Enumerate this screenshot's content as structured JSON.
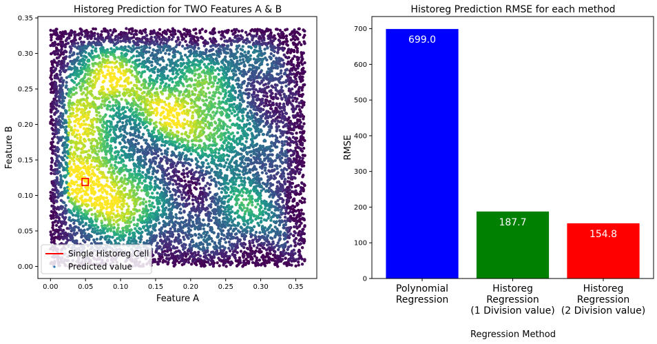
{
  "colors": {
    "viridis": [
      "#440154",
      "#472c7a",
      "#3b528b",
      "#2c728e",
      "#21918c",
      "#28ae80",
      "#5ec962",
      "#addc30",
      "#fde725"
    ],
    "cell_outline": "#ff0000",
    "legend_line": "#ff0000",
    "legend_marker": "#1f77b4"
  },
  "chart_data": [
    {
      "type": "scatter",
      "title": "Historeg Prediction for TWO Features A & B",
      "xlabel": "Feature A",
      "ylabel": "Feature B",
      "xlim": [
        -0.018,
        0.38
      ],
      "ylim": [
        -0.017,
        0.352
      ],
      "xticks": [
        0.0,
        0.05,
        0.1,
        0.15,
        0.2,
        0.25,
        0.3,
        0.35
      ],
      "xtick_labels": [
        "0.00",
        "0.05",
        "0.10",
        "0.15",
        "0.20",
        "0.25",
        "0.30",
        "0.35"
      ],
      "yticks": [
        0.0,
        0.05,
        0.1,
        0.15,
        0.2,
        0.25,
        0.3,
        0.35
      ],
      "ytick_labels": [
        "0.00",
        "0.05",
        "0.10",
        "0.15",
        "0.20",
        "0.25",
        "0.30",
        "0.35"
      ],
      "data_extent": {
        "x": [
          0.0,
          0.363
        ],
        "y": [
          0.0,
          0.335
        ]
      },
      "colormap": "viridis",
      "hotspots": [
        {
          "x": 0.048,
          "y": 0.118,
          "value": 1.0
        },
        {
          "x": 0.075,
          "y": 0.265,
          "value": 0.85
        },
        {
          "x": 0.16,
          "y": 0.215,
          "value": 0.75
        },
        {
          "x": 0.11,
          "y": 0.075,
          "value": 0.6
        },
        {
          "x": 0.25,
          "y": 0.185,
          "value": 0.55
        },
        {
          "x": 0.03,
          "y": 0.19,
          "value": 0.6
        },
        {
          "x": 0.22,
          "y": 0.27,
          "value": 0.5
        },
        {
          "x": 0.27,
          "y": 0.08,
          "value": 0.4
        }
      ],
      "highlight_cell": {
        "x": [
          0.045,
          0.054
        ],
        "y": [
          0.114,
          0.124
        ]
      },
      "legend": {
        "placement": "lower-left",
        "entries": [
          {
            "label": "Single Historeg Cell",
            "kind": "line"
          },
          {
            "label": "Predicted value",
            "kind": "marker"
          }
        ]
      },
      "grid": false
    },
    {
      "type": "bar",
      "title": "Historeg Prediction RMSE for each method",
      "xlabel": "Regression Method",
      "ylabel": "RMSE",
      "categories": [
        [
          "Polynomial",
          "Regression"
        ],
        [
          "Historeg",
          "Regression",
          "(1 Division value)"
        ],
        [
          "Historeg",
          "Regression",
          "(2 Division value)"
        ]
      ],
      "values": [
        699.0,
        187.7,
        154.8
      ],
      "value_labels": [
        "699.0",
        "187.7",
        "154.8"
      ],
      "bar_colors": [
        "#0000ff",
        "#008000",
        "#ff0000"
      ],
      "ylim": [
        0,
        734
      ],
      "yticks": [
        0,
        100,
        200,
        300,
        400,
        500,
        600,
        700
      ],
      "ytick_labels": [
        "0",
        "100",
        "200",
        "300",
        "400",
        "500",
        "600",
        "700"
      ],
      "grid": false
    }
  ]
}
